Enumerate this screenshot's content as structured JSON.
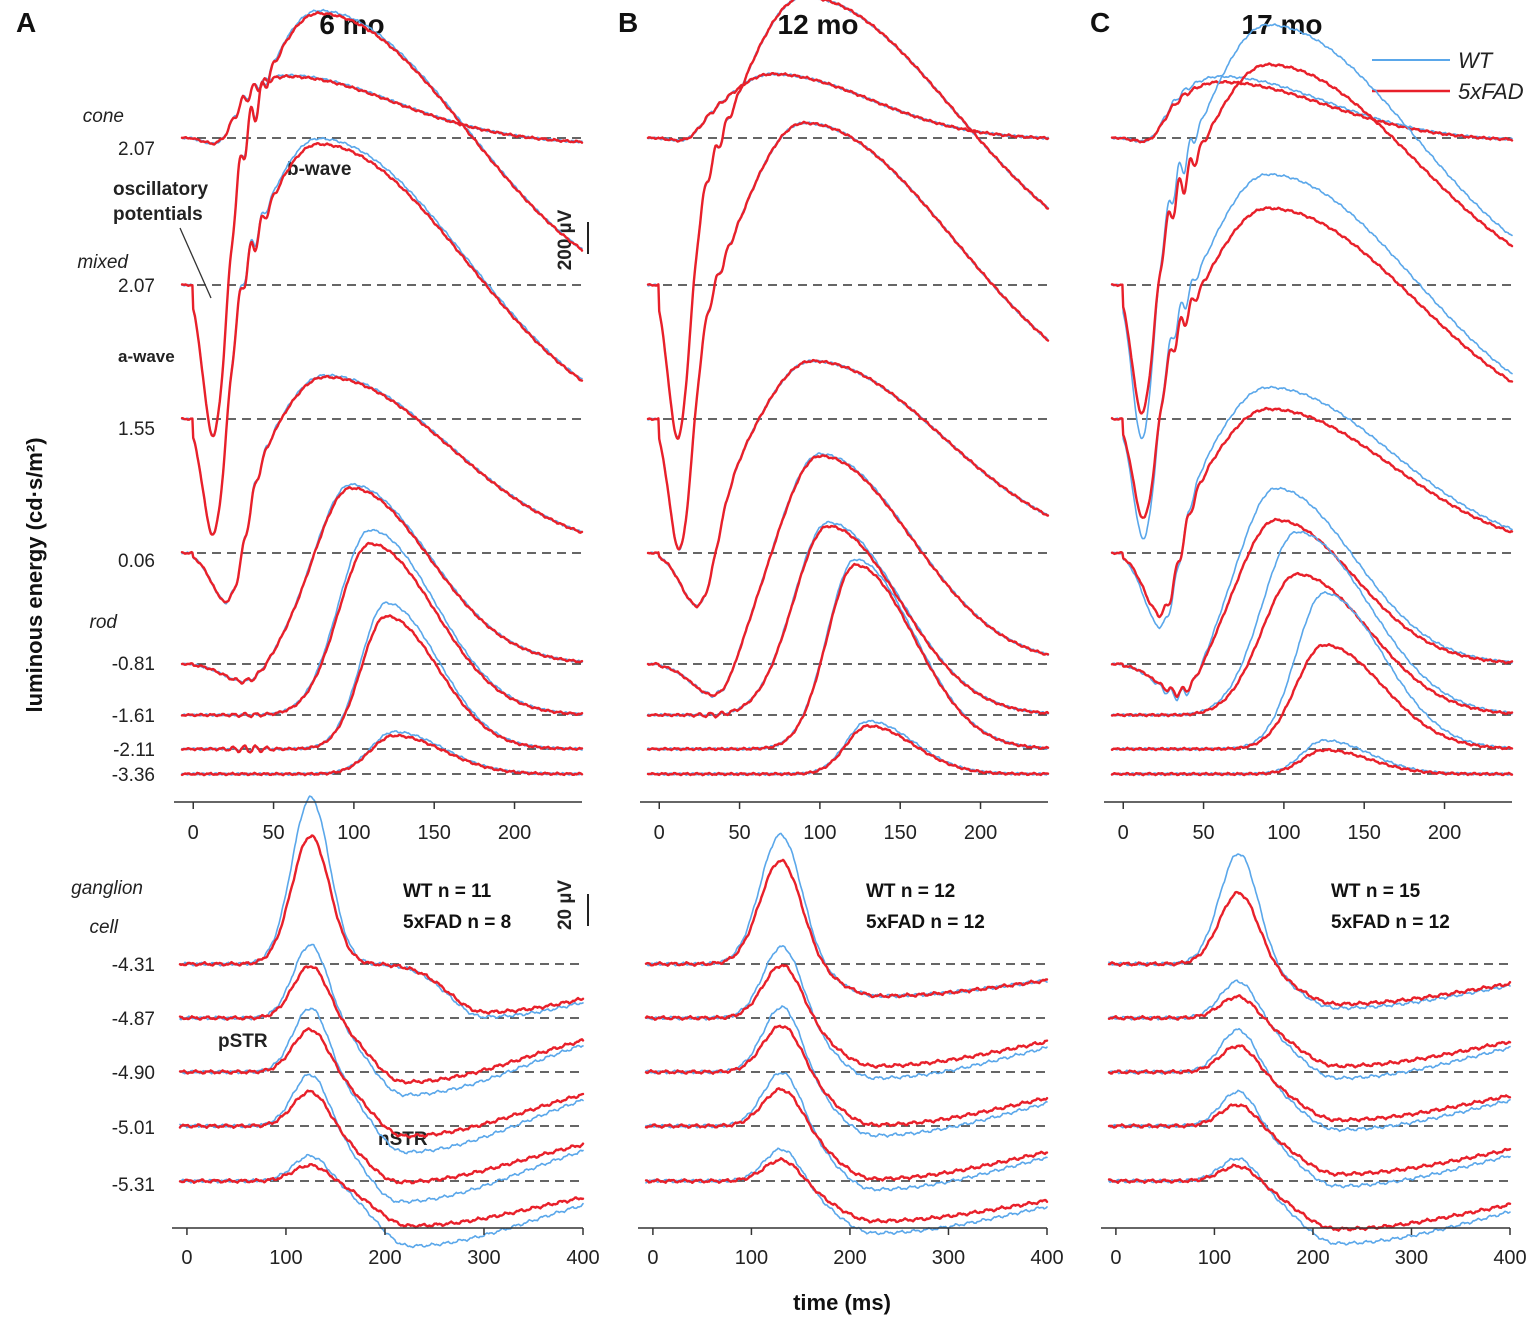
{
  "chart_data": {
    "type": "line",
    "panel_letters": [
      "A",
      "B",
      "C"
    ],
    "panel_titles": [
      "6 mo",
      "12 mo",
      "17 mo"
    ],
    "ylabel": "luminous energy (cd·s/m²)",
    "xlabel": "time (ms)",
    "legend": [
      {
        "name": "WT",
        "color": "#5aa7ea"
      },
      {
        "name": "5xFAD",
        "color": "#e8202a"
      }
    ],
    "row_labels": {
      "cone": "cone",
      "mixed": "mixed",
      "rod": "rod",
      "ganglion_1": "ganglion",
      "ganglion_2": "cell"
    },
    "annotations": {
      "b_wave": "b-wave",
      "oscillatory_1": "oscillatory",
      "oscillatory_2": "potentials",
      "a_wave": "a-wave",
      "pstr": "pSTR",
      "nstr": "nSTR"
    },
    "scale_bars": {
      "top": "200 µV",
      "bottom": "20 µV"
    },
    "group_sizes": [
      {
        "wt": "WT n = 11",
        "fad": "5xFAD n = 8"
      },
      {
        "wt": "WT n = 12",
        "fad": "5xFAD n = 12"
      },
      {
        "wt": "WT n = 15",
        "fad": "5xFAD n = 12"
      }
    ],
    "top_axis": {
      "xlim": [
        -7,
        242
      ],
      "ticks": [
        0,
        50,
        100,
        150,
        200
      ],
      "unit": "ms"
    },
    "bottom_axis": {
      "xlim": [
        -7,
        400
      ],
      "ticks": [
        0,
        100,
        200,
        300,
        400
      ],
      "unit": "ms"
    },
    "top_levels": [
      {
        "label": "2.07",
        "type": "cone"
      },
      {
        "label": "2.07",
        "type": "mixed"
      },
      {
        "label": "1.55",
        "type": "mixed"
      },
      {
        "label": "0.06",
        "type": "mixed"
      },
      {
        "label": "-0.81",
        "type": "rod"
      },
      {
        "label": "-1.61",
        "type": "rod"
      },
      {
        "label": "-2.11",
        "type": "rod"
      },
      {
        "label": "-3.36",
        "type": "rod"
      }
    ],
    "bottom_levels": [
      {
        "label": "-4.31"
      },
      {
        "label": "-4.87"
      },
      {
        "label": "-4.90"
      },
      {
        "label": "-5.01"
      },
      {
        "label": "-5.31"
      }
    ],
    "traces_top_uV": [
      [
        {
          "a": 45,
          "apeak": 15,
          "b": 385,
          "bpeak": 58,
          "bw": 80,
          "late": 40,
          "op": 35,
          "wtb": 1.02,
          "wta": 1.05
        },
        {
          "a": 1000,
          "apeak": 13,
          "b": 1700,
          "bpeak": 78,
          "bw": 110,
          "late": 120,
          "op": 90,
          "wtb": 1.01,
          "wta": 1.0
        },
        {
          "a": 780,
          "apeak": 13,
          "b": 1720,
          "bpeak": 78,
          "bw": 110,
          "late": 100,
          "op": 70,
          "wtb": 1.02,
          "wta": 1.0
        },
        {
          "a": 330,
          "apeak": 22,
          "b": 1100,
          "bpeak": 82,
          "bw": 95,
          "late": 0,
          "op": 40,
          "wtb": 1.01,
          "wta": 1.0
        },
        {
          "a": 110,
          "apeak": 32,
          "b": 1100,
          "bpeak": 98,
          "bw": 60,
          "late": 0,
          "op": 10,
          "wtb": 1.02,
          "wta": 1.0
        },
        {
          "a": 0,
          "apeak": 30,
          "b": 1070,
          "bpeak": 110,
          "bw": 50,
          "late": 0,
          "op": 8,
          "wtb": 1.08,
          "wta": 1.0
        },
        {
          "a": 0,
          "apeak": 30,
          "b": 830,
          "bpeak": 120,
          "bw": 40,
          "late": 0,
          "op": 18,
          "wtb": 1.1,
          "wta": 1.0
        },
        {
          "a": 0,
          "apeak": 30,
          "b": 240,
          "bpeak": 125,
          "bw": 38,
          "late": 0,
          "op": 0,
          "wtb": 1.1,
          "wta": 1.0
        }
      ],
      [
        {
          "a": 20,
          "apeak": 15,
          "b": 400,
          "bpeak": 70,
          "bw": 75,
          "late": 10,
          "op": 10,
          "wtb": 1.0,
          "wta": 1.0
        },
        {
          "a": 1000,
          "apeak": 12,
          "b": 1800,
          "bpeak": 90,
          "bw": 115,
          "late": 0,
          "op": 40,
          "wtb": 1.0,
          "wta": 1.0
        },
        {
          "a": 860,
          "apeak": 13,
          "b": 1850,
          "bpeak": 90,
          "bw": 115,
          "late": 0,
          "op": 30,
          "wtb": 1.0,
          "wta": 1.0
        },
        {
          "a": 350,
          "apeak": 25,
          "b": 1200,
          "bpeak": 95,
          "bw": 100,
          "late": 0,
          "op": 10,
          "wtb": 1.0,
          "wta": 1.0
        },
        {
          "a": 200,
          "apeak": 35,
          "b": 1300,
          "bpeak": 100,
          "bw": 70,
          "late": 0,
          "op": 10,
          "wtb": 1.01,
          "wta": 1.0
        },
        {
          "a": 0,
          "apeak": 30,
          "b": 1180,
          "bpeak": 105,
          "bw": 55,
          "late": 0,
          "op": 10,
          "wtb": 1.02,
          "wta": 1.0
        },
        {
          "a": 0,
          "apeak": 30,
          "b": 1150,
          "bpeak": 122,
          "bw": 45,
          "late": 0,
          "op": 0,
          "wtb": 1.03,
          "wta": 1.0
        },
        {
          "a": 0,
          "apeak": 30,
          "b": 300,
          "bpeak": 130,
          "bw": 35,
          "late": 0,
          "op": 0,
          "wtb": 1.1,
          "wta": 1.0
        }
      ],
      [
        {
          "a": 30,
          "apeak": 15,
          "b": 350,
          "bpeak": 60,
          "bw": 80,
          "late": 20,
          "op": 15,
          "wtb": 1.1,
          "wta": 1.0
        },
        {
          "a": 830,
          "apeak": 12,
          "b": 1380,
          "bpeak": 90,
          "bw": 110,
          "late": 100,
          "op": 80,
          "wtb": 1.18,
          "wta": 1.2
        },
        {
          "a": 650,
          "apeak": 13,
          "b": 1320,
          "bpeak": 90,
          "bw": 110,
          "late": 100,
          "op": 60,
          "wtb": 1.16,
          "wta": 1.2
        },
        {
          "a": 400,
          "apeak": 24,
          "b": 900,
          "bpeak": 90,
          "bw": 95,
          "late": 0,
          "op": 40,
          "wtb": 1.15,
          "wta": 1.2
        },
        {
          "a": 180,
          "apeak": 35,
          "b": 900,
          "bpeak": 95,
          "bw": 60,
          "late": 0,
          "op": 30,
          "wtb": 1.22,
          "wta": 1.1
        },
        {
          "a": 0,
          "apeak": 30,
          "b": 880,
          "bpeak": 108,
          "bw": 55,
          "late": 0,
          "op": 0,
          "wtb": 1.3,
          "wta": 1.0
        },
        {
          "a": 0,
          "apeak": 30,
          "b": 650,
          "bpeak": 125,
          "bw": 45,
          "late": 0,
          "op": 0,
          "wtb": 1.5,
          "wta": 1.0
        },
        {
          "a": 0,
          "apeak": 30,
          "b": 150,
          "bpeak": 125,
          "bw": 35,
          "late": 0,
          "op": 0,
          "wtb": 1.4,
          "wta": 1.0
        }
      ]
    ],
    "traces_bottom_uV": [
      [
        {
          "p": 80,
          "ppeak": 125,
          "pw": 27,
          "n": 30,
          "npeak": 300,
          "nw": 110,
          "wtp": 1.3,
          "wtn": 1.1
        },
        {
          "p": 33,
          "ppeak": 125,
          "pw": 25,
          "n": 40,
          "npeak": 220,
          "nw": 110,
          "wtp": 1.4,
          "wtn": 1.2
        },
        {
          "p": 27,
          "ppeak": 125,
          "pw": 25,
          "n": 40,
          "npeak": 220,
          "nw": 110,
          "wtp": 1.5,
          "wtn": 1.25
        },
        {
          "p": 22,
          "ppeak": 125,
          "pw": 25,
          "n": 35,
          "npeak": 215,
          "nw": 110,
          "wtp": 1.5,
          "wtn": 1.35
        },
        {
          "p": 10,
          "ppeak": 125,
          "pw": 25,
          "n": 28,
          "npeak": 225,
          "nw": 110,
          "wtp": 1.6,
          "wtn": 1.45
        }
      ],
      [
        {
          "p": 65,
          "ppeak": 130,
          "pw": 30,
          "n": 20,
          "npeak": 230,
          "nw": 130,
          "wtp": 1.25,
          "wtn": 1.0
        },
        {
          "p": 34,
          "ppeak": 132,
          "pw": 28,
          "n": 30,
          "npeak": 225,
          "nw": 130,
          "wtp": 1.35,
          "wtn": 1.25
        },
        {
          "p": 30,
          "ppeak": 132,
          "pw": 28,
          "n": 33,
          "npeak": 225,
          "nw": 130,
          "wtp": 1.4,
          "wtn": 1.2
        },
        {
          "p": 24,
          "ppeak": 132,
          "pw": 28,
          "n": 33,
          "npeak": 225,
          "nw": 130,
          "wtp": 1.45,
          "wtn": 1.2
        },
        {
          "p": 14,
          "ppeak": 132,
          "pw": 26,
          "n": 25,
          "npeak": 225,
          "nw": 130,
          "wtp": 1.5,
          "wtn": 1.3
        }
      ],
      [
        {
          "p": 45,
          "ppeak": 125,
          "pw": 28,
          "n": 25,
          "npeak": 225,
          "nw": 130,
          "wtp": 1.55,
          "wtn": 1.1
        },
        {
          "p": 14,
          "ppeak": 125,
          "pw": 26,
          "n": 30,
          "npeak": 225,
          "nw": 130,
          "wtp": 1.7,
          "wtn": 1.25
        },
        {
          "p": 17,
          "ppeak": 125,
          "pw": 26,
          "n": 30,
          "npeak": 225,
          "nw": 130,
          "wtp": 1.6,
          "wtn": 1.2
        },
        {
          "p": 14,
          "ppeak": 125,
          "pw": 26,
          "n": 30,
          "npeak": 225,
          "nw": 130,
          "wtp": 1.6,
          "wtn": 1.25
        },
        {
          "p": 10,
          "ppeak": 125,
          "pw": 26,
          "n": 30,
          "npeak": 225,
          "nw": 130,
          "wtp": 1.5,
          "wtn": 1.3
        }
      ]
    ]
  }
}
